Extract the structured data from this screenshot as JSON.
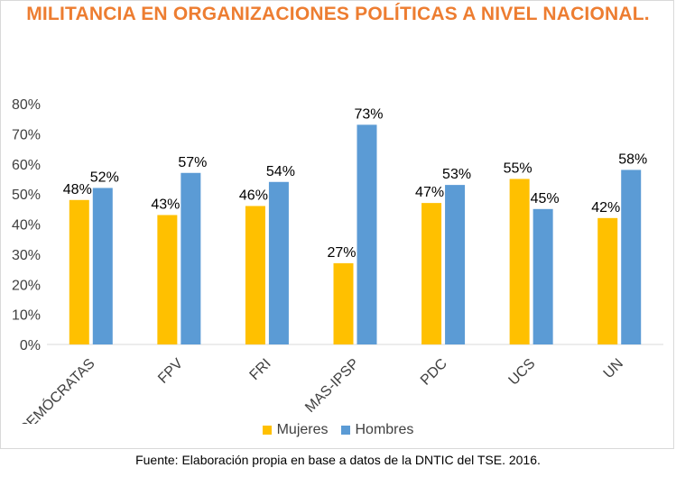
{
  "chart_data": {
    "type": "bar",
    "title": "MILITANCIA EN ORGANIZACIONES POLÍTICAS A NIVEL NACIONAL.",
    "categories": [
      "DEMÓCRATAS",
      "FPV",
      "FRI",
      "MAS-IPSP",
      "PDC",
      "UCS",
      "UN"
    ],
    "series": [
      {
        "name": "Mujeres",
        "values": [
          48,
          43,
          46,
          27,
          47,
          55,
          42
        ],
        "labels": [
          "48%",
          "43%",
          "46%",
          "27%",
          "47%",
          "55%",
          "42%"
        ],
        "color": "#ffc000"
      },
      {
        "name": "Hombres",
        "values": [
          52,
          57,
          54,
          73,
          53,
          45,
          58
        ],
        "labels": [
          "52%",
          "57%",
          "54%",
          "73%",
          "53%",
          "45%",
          "58%"
        ],
        "color": "#5b9bd5"
      }
    ],
    "ylim": [
      0,
      80
    ],
    "yticks": [
      "0%",
      "10%",
      "20%",
      "30%",
      "40%",
      "50%",
      "60%",
      "70%",
      "80%"
    ],
    "grid": false,
    "legend_position": "bottom",
    "title_color": "#ed7d31",
    "source": "Fuente: Elaboración propia en base a datos de la DNTIC del TSE. 2016."
  }
}
